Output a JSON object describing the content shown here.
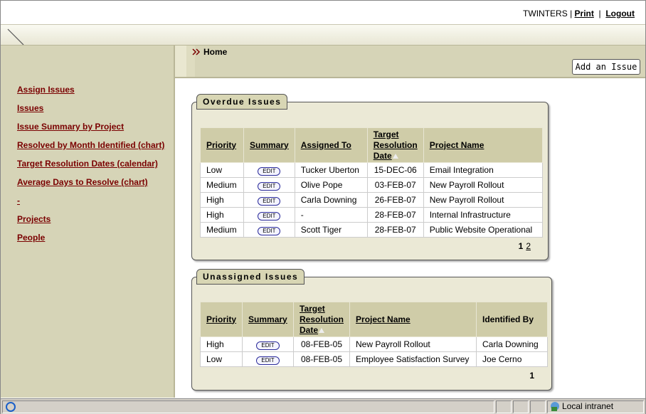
{
  "header": {
    "user": "TWINTERS",
    "separator": "|",
    "links": [
      "Print",
      "Logout"
    ]
  },
  "breadcrumb": "Home",
  "add_button": "Add an Issue",
  "nav": [
    "Assign Issues",
    "Issues",
    "Issue Summary by Project",
    "Resolved by Month Identified (chart)",
    "Target Resolution Dates (calendar)",
    "Average Days to Resolve (chart)",
    "-",
    "Projects",
    "People"
  ],
  "regions": [
    {
      "title": "Overdue Issues",
      "columns": [
        "Priority",
        "Summary",
        "Assigned To",
        "Target Resolution Date",
        "Project Name"
      ],
      "rows": [
        [
          "Low",
          "EDIT",
          "Tucker Uberton",
          "15-DEC-06",
          "Email Integration"
        ],
        [
          "Medium",
          "EDIT",
          "Olive Pope",
          "03-FEB-07",
          "New Payroll Rollout"
        ],
        [
          "High",
          "EDIT",
          "Carla Downing",
          "26-FEB-07",
          "New Payroll Rollout"
        ],
        [
          "High",
          "EDIT",
          "-",
          "28-FEB-07",
          "Internal Infrastructure"
        ],
        [
          "Medium",
          "EDIT",
          "Scott Tiger",
          "28-FEB-07",
          "Public Website Operational"
        ]
      ],
      "pages": [
        "1",
        "2"
      ]
    },
    {
      "title": "Unassigned Issues",
      "columns": [
        "Priority",
        "Summary",
        "Target Resolution Date",
        "Project Name",
        "Identified By"
      ],
      "rows": [
        [
          "High",
          "EDIT",
          "08-FEB-05",
          "New Payroll Rollout",
          "Carla Downing"
        ],
        [
          "Low",
          "EDIT",
          "08-FEB-05",
          "Employee Satisfaction Survey",
          "Joe Cerno"
        ]
      ],
      "pages": [
        "1"
      ]
    }
  ],
  "status": "Local intranet"
}
